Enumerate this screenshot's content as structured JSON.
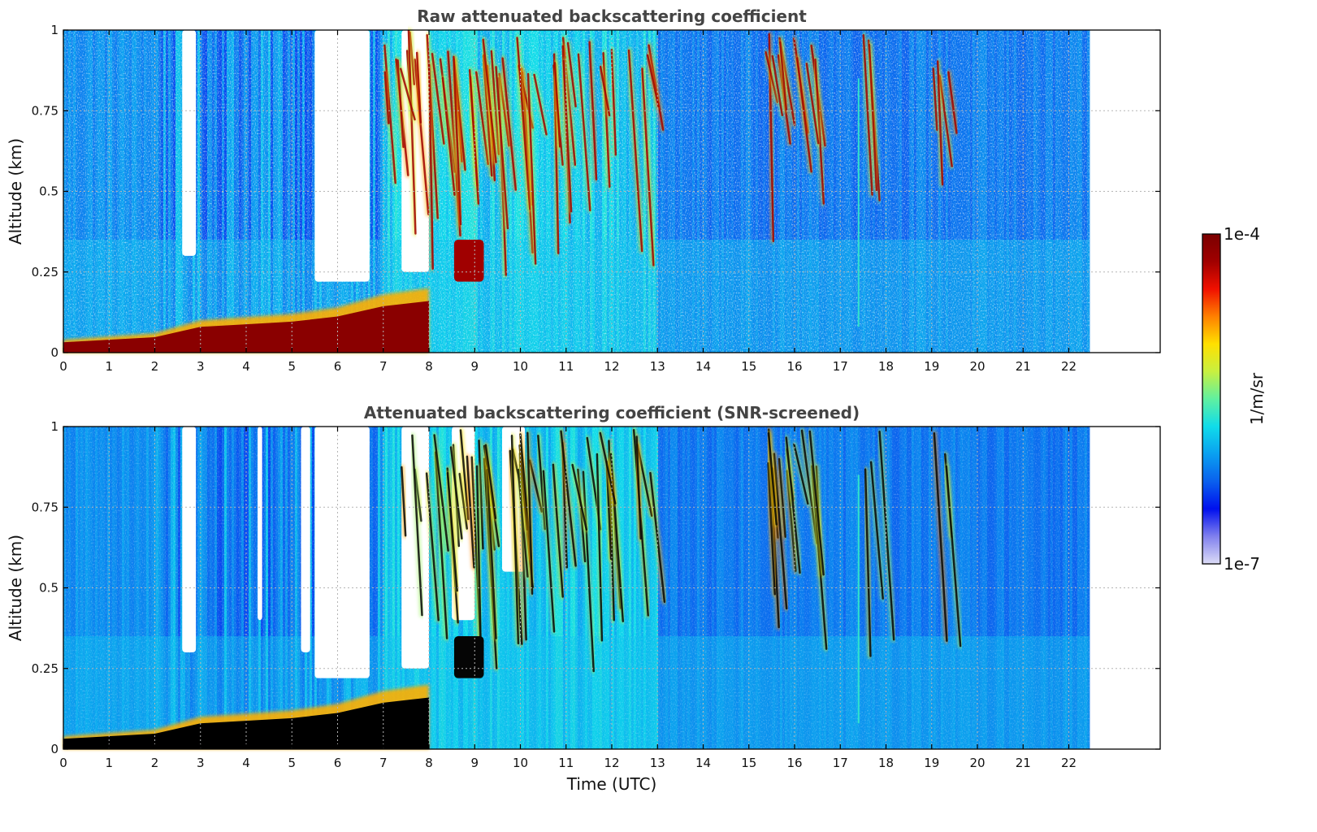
{
  "chart_data": [
    {
      "type": "heatmap",
      "title": "Raw attenuated backscattering coefficient",
      "xlabel": "",
      "ylabel": "Altitude (km)",
      "xlim": [
        0,
        24
      ],
      "ylim": [
        0,
        1
      ],
      "x_ticks": [
        "0",
        "1",
        "2",
        "3",
        "4",
        "5",
        "6",
        "7",
        "8",
        "9",
        "10",
        "11",
        "12",
        "13",
        "14",
        "15",
        "16",
        "17",
        "18",
        "19",
        "20",
        "21",
        "22"
      ],
      "y_ticks": [
        "0",
        "0.25",
        "0.5",
        "0.75",
        "1"
      ],
      "data_time_range": [
        0,
        22.45
      ],
      "grid": true,
      "screened": false,
      "features": {
        "surface_layer_top_km": [
          [
            0,
            0.04
          ],
          [
            2,
            0.06
          ],
          [
            3,
            0.1
          ],
          [
            4,
            0.11
          ],
          [
            5,
            0.12
          ],
          [
            6,
            0.14
          ],
          [
            7,
            0.18
          ],
          [
            8,
            0.2
          ]
        ],
        "clear_gaps_utc": [
          [
            2.6,
            2.9
          ],
          [
            5.5,
            6.7
          ],
          [
            7.4,
            8.0
          ]
        ],
        "cloud_streaks_utc": [
          [
            7.0,
            13.0
          ],
          [
            15.3,
            16.5
          ],
          [
            17.5,
            18.0
          ],
          [
            19.0,
            19.4
          ]
        ]
      }
    },
    {
      "type": "heatmap",
      "title": "Attenuated backscattering coefficient (SNR-screened)",
      "xlabel": "Time (UTC)",
      "ylabel": "Altitude (km)",
      "xlim": [
        0,
        24
      ],
      "ylim": [
        0,
        1
      ],
      "x_ticks": [
        "0",
        "1",
        "2",
        "3",
        "4",
        "5",
        "6",
        "7",
        "8",
        "9",
        "10",
        "11",
        "12",
        "13",
        "14",
        "15",
        "16",
        "17",
        "18",
        "19",
        "20",
        "21",
        "22"
      ],
      "y_ticks": [
        "0",
        "0.25",
        "0.5",
        "0.75",
        "1"
      ],
      "data_time_range": [
        0,
        22.45
      ],
      "grid": true,
      "screened": true
    }
  ],
  "colorbar": {
    "min_label": "1e-7",
    "max_label": "1e-4",
    "unit_label": "1/m/sr",
    "colors": [
      "#dcdcf6",
      "#8080ee",
      "#0010ee",
      "#0a60ee",
      "#0aa0f0",
      "#10dcea",
      "#60f0a0",
      "#c8f040",
      "#ffe000",
      "#ff8000",
      "#f01000",
      "#a00000",
      "#7a0000"
    ]
  }
}
